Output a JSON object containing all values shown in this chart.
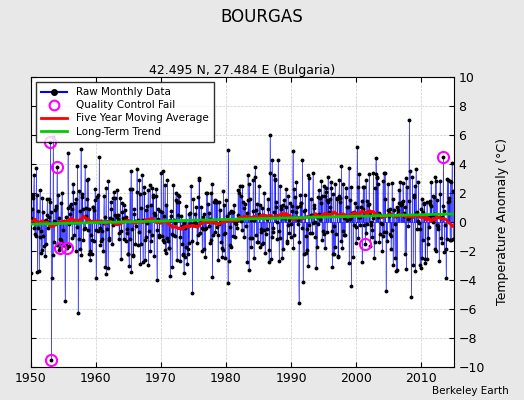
{
  "title": "BOURGAS",
  "subtitle": "42.495 N, 27.484 E (Bulgaria)",
  "ylabel": "Temperature Anomaly (°C)",
  "credit": "Berkeley Earth",
  "xlim": [
    1950,
    2015
  ],
  "ylim": [
    -10,
    10
  ],
  "yticks": [
    -10,
    -8,
    -6,
    -4,
    -2,
    0,
    2,
    4,
    6,
    8,
    10
  ],
  "xticks": [
    1950,
    1960,
    1970,
    1980,
    1990,
    2000,
    2010
  ],
  "start_year": 1950,
  "end_year": 2014,
  "raw_color": "#0000FF",
  "ma_color": "#FF0000",
  "trend_color": "#00CC00",
  "qc_color": "#FF00FF",
  "plot_bg": "#FFFFFF",
  "fig_bg": "#E8E8E8"
}
